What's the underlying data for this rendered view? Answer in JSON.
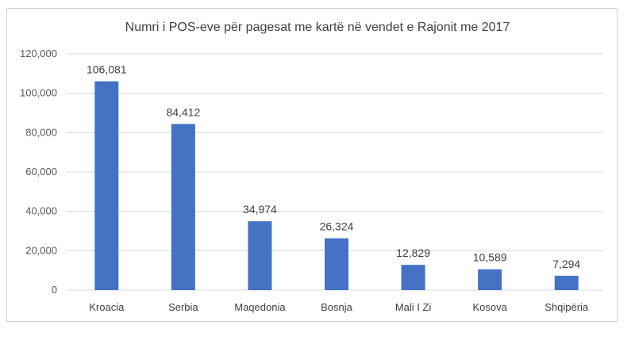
{
  "chart_data": {
    "type": "bar",
    "title": "Numri i POS-eve për pagesat me kartë në vendet e Rajonit me 2017",
    "categories": [
      "Kroacia",
      "Serbia",
      "Maqedonia",
      "Bosnja",
      "Mali I Zi",
      "Kosova",
      "Shqipëria"
    ],
    "values": [
      106081,
      84412,
      34974,
      26324,
      12829,
      10589,
      7294
    ],
    "data_labels": [
      "106,081",
      "84,412",
      "34,974",
      "26,324",
      "12,829",
      "10,589",
      "7,294"
    ],
    "xlabel": "",
    "ylabel": "",
    "ylim": [
      0,
      120000
    ],
    "y_ticks": [
      0,
      20000,
      40000,
      60000,
      80000,
      100000,
      120000
    ],
    "y_tick_labels": [
      "0",
      "20,000",
      "40,000",
      "60,000",
      "80,000",
      "100,000",
      "120,000"
    ],
    "grid": true,
    "legend": "none",
    "bar_color": "#4472C4",
    "grid_color": "#d9d9d9"
  }
}
